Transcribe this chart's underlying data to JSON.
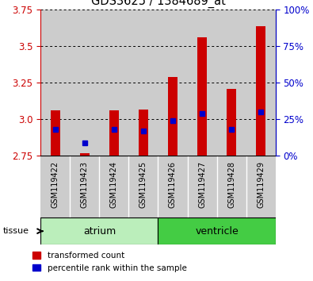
{
  "title": "GDS3625 / 1384689_at",
  "samples": [
    "GSM119422",
    "GSM119423",
    "GSM119424",
    "GSM119425",
    "GSM119426",
    "GSM119427",
    "GSM119428",
    "GSM119429"
  ],
  "bar_values": [
    3.06,
    2.77,
    3.06,
    3.07,
    3.29,
    3.56,
    3.21,
    3.64
  ],
  "bar_bottom": 2.75,
  "percentile_values": [
    2.93,
    2.84,
    2.93,
    2.92,
    2.99,
    3.04,
    2.93,
    3.05
  ],
  "ylim_main": [
    2.75,
    3.75
  ],
  "ylim_with_labels": [
    2.1,
    3.75
  ],
  "y_ticks_left": [
    2.75,
    3.0,
    3.25,
    3.5,
    3.75
  ],
  "y_ticks_right": [
    0,
    25,
    50,
    75,
    100
  ],
  "tissue_groups": {
    "atrium": [
      0,
      1,
      2,
      3
    ],
    "ventricle": [
      4,
      5,
      6,
      7
    ]
  },
  "bar_color": "#cc0000",
  "dot_color": "#0000cc",
  "atrium_color": "#bbeebb",
  "ventricle_color": "#44cc44",
  "col_bg_color": "#cccccc",
  "title_color": "#000000",
  "left_axis_color": "#cc0000",
  "right_axis_color": "#0000cc",
  "grid_color": "#000000",
  "bg_color": "#ffffff",
  "bar_width": 0.7,
  "legend_red_label": "transformed count",
  "legend_blue_label": "percentile rank within the sample"
}
